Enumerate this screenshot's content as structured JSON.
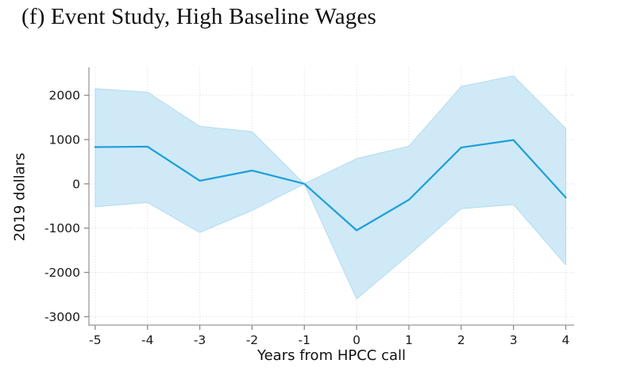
{
  "title": "(f) Event Study, High Baseline Wages",
  "colors": {
    "line": "#1c9fd9",
    "band_fill": "#cfe9f7",
    "band_stroke": "#b3dcf0",
    "grid": "#d9d9d9",
    "axis": "#9a9a9a",
    "tick": "#8a8a8a",
    "text": "#1a1a1a"
  },
  "chart_data": {
    "type": "line",
    "title": "(f) Event Study, High Baseline Wages",
    "xlabel": "Years from HPCC call",
    "ylabel": "2019 dollars",
    "x": [
      -5,
      -4,
      -3,
      -2,
      -1,
      0,
      1,
      2,
      3,
      4
    ],
    "series": [
      {
        "name": "coefficient",
        "values": [
          830,
          840,
          70,
          300,
          0,
          -1050,
          -360,
          820,
          990,
          -310
        ]
      },
      {
        "name": "ci_upper",
        "values": [
          2150,
          2070,
          1300,
          1180,
          0,
          570,
          850,
          2200,
          2440,
          1250
        ]
      },
      {
        "name": "ci_lower",
        "values": [
          -520,
          -420,
          -1100,
          -600,
          0,
          -2600,
          -1600,
          -560,
          -470,
          -1830
        ]
      }
    ],
    "xticks": [
      -5,
      -4,
      -3,
      -2,
      -1,
      0,
      1,
      2,
      3,
      4
    ],
    "yticks": [
      -3000,
      -2000,
      -1000,
      0,
      1000,
      2000
    ],
    "xlim": [
      -5.12,
      4.16
    ],
    "ylim": [
      -3190,
      2630
    ],
    "grid": "dotted",
    "legend": "none",
    "band": true
  }
}
